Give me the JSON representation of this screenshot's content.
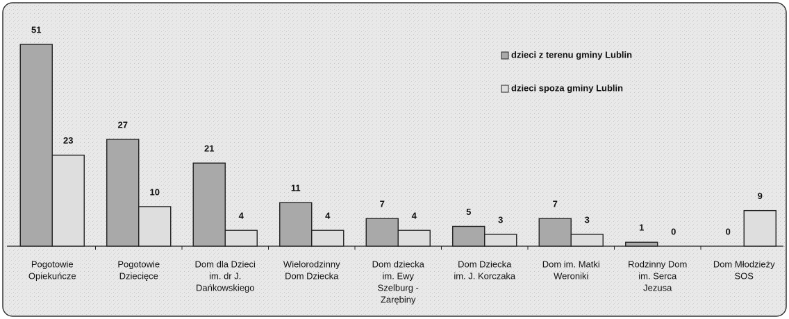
{
  "chart_data": {
    "type": "bar",
    "categories": [
      [
        "Pogotowie",
        "Opiekuńcze"
      ],
      [
        "Pogotowie",
        "Dziecięce"
      ],
      [
        "Dom dla Dzieci",
        "im. dr J.",
        "Dańkowskiego"
      ],
      [
        "Wielorodzinny",
        "Dom Dziecka"
      ],
      [
        "Dom dziecka",
        "im. Ewy",
        "Szelburg -",
        "Zarębiny"
      ],
      [
        "Dom Dziecka",
        "im. J. Korczaka"
      ],
      [
        "Dom im. Matki",
        "Weroniki"
      ],
      [
        "Rodzinny Dom",
        "im. Serca",
        "Jezusa"
      ],
      [
        "Dom Młodzieży",
        "SOS"
      ]
    ],
    "series": [
      {
        "name": "dzieci z terenu gminy Lublin",
        "color": "#a9a9a9",
        "values": [
          51,
          27,
          21,
          11,
          7,
          5,
          7,
          1,
          0
        ]
      },
      {
        "name": "dzieci spoza gminy Lublin",
        "color": "#dedede",
        "values": [
          23,
          10,
          4,
          4,
          4,
          3,
          3,
          0,
          9
        ]
      }
    ],
    "legend": "top-right"
  }
}
